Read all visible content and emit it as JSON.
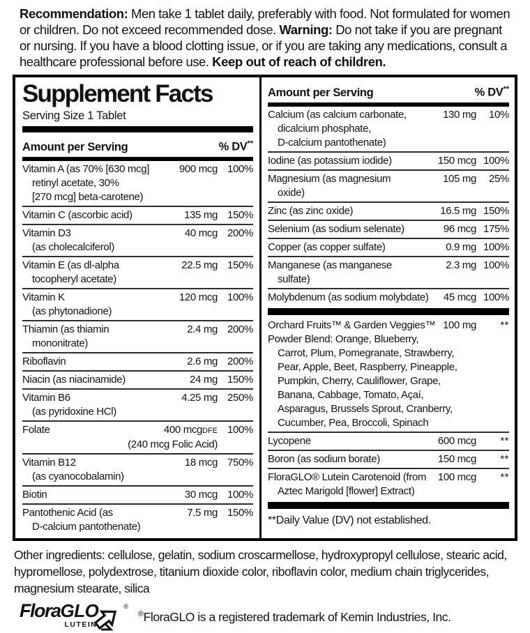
{
  "recommendation": {
    "bold1": "Recommendation:",
    "text1": " Men take 1 tablet daily, preferably with food.  Not formulated for women or children.  Do not exceed recommended dose. ",
    "bold2": "Warning:",
    "text2": " Do not take if you are pregnant or nursing. If you have a blood clotting issue, or if you are taking any medications, consult a healthcare professional before use. ",
    "bold3": "Keep out of reach of children."
  },
  "panel": {
    "title": "Supplement Facts",
    "serving_size": "Serving Size 1 Tablet",
    "columns": {
      "amount": "Amount per Serving",
      "dv": "% DV",
      "dv_sup": "**"
    },
    "left_rows": [
      {
        "name": [
          "Vitamin A (as 70% [630 mcg]",
          "retinyl acetate, 30%",
          "[270 mcg] beta-carotene)"
        ],
        "amount": "900 mcg",
        "dv": "100%"
      },
      {
        "name": [
          "Vitamin C (ascorbic acid)"
        ],
        "amount": "135 mg",
        "dv": "150%"
      },
      {
        "name": [
          "Vitamin D3",
          "(as cholecalciferol)"
        ],
        "amount": "40 mcg",
        "dv": "200%"
      },
      {
        "name": [
          "Vitamin E (as dl-alpha",
          "tocopheryl acetate)"
        ],
        "amount": "22.5 mg",
        "dv": "150%"
      },
      {
        "name": [
          "Vitamin K",
          "(as phytonadione)"
        ],
        "amount": "120 mcg",
        "dv": "100%"
      },
      {
        "name": [
          "Thiamin (as thiamin",
          "mononitrate)"
        ],
        "amount": "2.4 mg",
        "dv": "200%"
      },
      {
        "name": [
          "Riboflavin"
        ],
        "amount": "2.6 mg",
        "dv": "200%"
      },
      {
        "name": [
          "Niacin (as niacinamide)"
        ],
        "amount": "24 mg",
        "dv": "150%"
      },
      {
        "name": [
          "Vitamin B6",
          "(as pyridoxine HCl)"
        ],
        "amount": "4.25 mg",
        "dv": "250%"
      },
      {
        "name": [
          "Folate"
        ],
        "amount": "400 mcg",
        "amount_suffix": "DFE",
        "dv": "100%",
        "subline": "(240 mcg Folic Acid)"
      },
      {
        "name": [
          "Vitamin B12",
          "(as cyanocobalamin)"
        ],
        "amount": "18 mcg",
        "dv": "750%"
      },
      {
        "name": [
          "Biotin"
        ],
        "amount": "30 mcg",
        "dv": "100%"
      },
      {
        "name": [
          "Pantothenic Acid (as",
          "D-calcium pantothenate)"
        ],
        "amount": "7.5 mg",
        "dv": "150%"
      }
    ],
    "right_rows": [
      {
        "name": [
          "Calcium (as calcium carbonate,",
          "dicalcium phosphate,",
          "D-calcium pantothenate)"
        ],
        "amount": "130 mg",
        "dv": "10%"
      },
      {
        "name": [
          "Iodine (as potassium iodide)"
        ],
        "amount": "150 mcg",
        "dv": "100%"
      },
      {
        "name": [
          "Magnesium (as magnesium",
          "oxide)"
        ],
        "amount": "105 mg",
        "dv": "25%"
      },
      {
        "name": [
          "Zinc (as zinc oxide)"
        ],
        "amount": "16.5 mg",
        "dv": "150%"
      },
      {
        "name": [
          "Selenium (as sodium selenate)"
        ],
        "amount": "96 mcg",
        "dv": "175%"
      },
      {
        "name": [
          "Copper (as copper sulfate)"
        ],
        "amount": "0.9 mg",
        "dv": "100%"
      },
      {
        "name": [
          "Manganese (as manganese",
          "sulfate)"
        ],
        "amount": "2.3 mg",
        "dv": "100%"
      },
      {
        "name": [
          "Molybdenum (as sodium molybdate)"
        ],
        "amount": "45 mcg",
        "dv": "100%"
      }
    ],
    "blend": {
      "title": "Orchard Fruits™ & Garden Veggies™",
      "amount": "100 mg",
      "dv": "**",
      "line2": "Powder Blend: Orange, Blueberry,",
      "lines": [
        "Carrot, Plum, Pomegranate, Strawberry,",
        "Pear, Apple, Beet, Raspberry, Pineapple,",
        "Pumpkin, Cherry, Cauliflower, Grape,",
        "Banana, Cabbage, Tomato, Açaí,",
        "Asparagus, Brussels Sprout, Cranberry,",
        "Cucumber, Pea, Broccoli, Spinach"
      ]
    },
    "extra_rows": [
      {
        "name": [
          "Lycopene"
        ],
        "amount": "600 mcg",
        "dv": "**"
      },
      {
        "name": [
          "Boron (as sodium borate)"
        ],
        "amount": "150 mcg",
        "dv": "**"
      },
      {
        "name": [
          "FloraGLO® Lutein Carotenoid (from",
          "Aztec Marigold [flower] Extract)"
        ],
        "amount": "100 mcg",
        "dv": "**"
      }
    ],
    "footnote": "**Daily Value (DV) not established."
  },
  "other_ingredients": "Other ingredients: cellulose, gelatin, sodium croscarmellose, hydroxypropyl cellulose, stearic acid, hypromellose, polydextrose, titanium dioxide color, riboflavin color, medium chain triglycerides, magnesium stearate, silica",
  "logo": {
    "flora": "Flora",
    "glo": "GLO",
    "lutein": "LUTEIN",
    "reg": "®"
  },
  "trademark": {
    "reg": "®",
    "text": "FloraGLO is a registered trademark of Kemin Industries, Inc."
  },
  "colors": {
    "ink": "#111111",
    "background": "#ffffff",
    "bar": "#000000"
  }
}
